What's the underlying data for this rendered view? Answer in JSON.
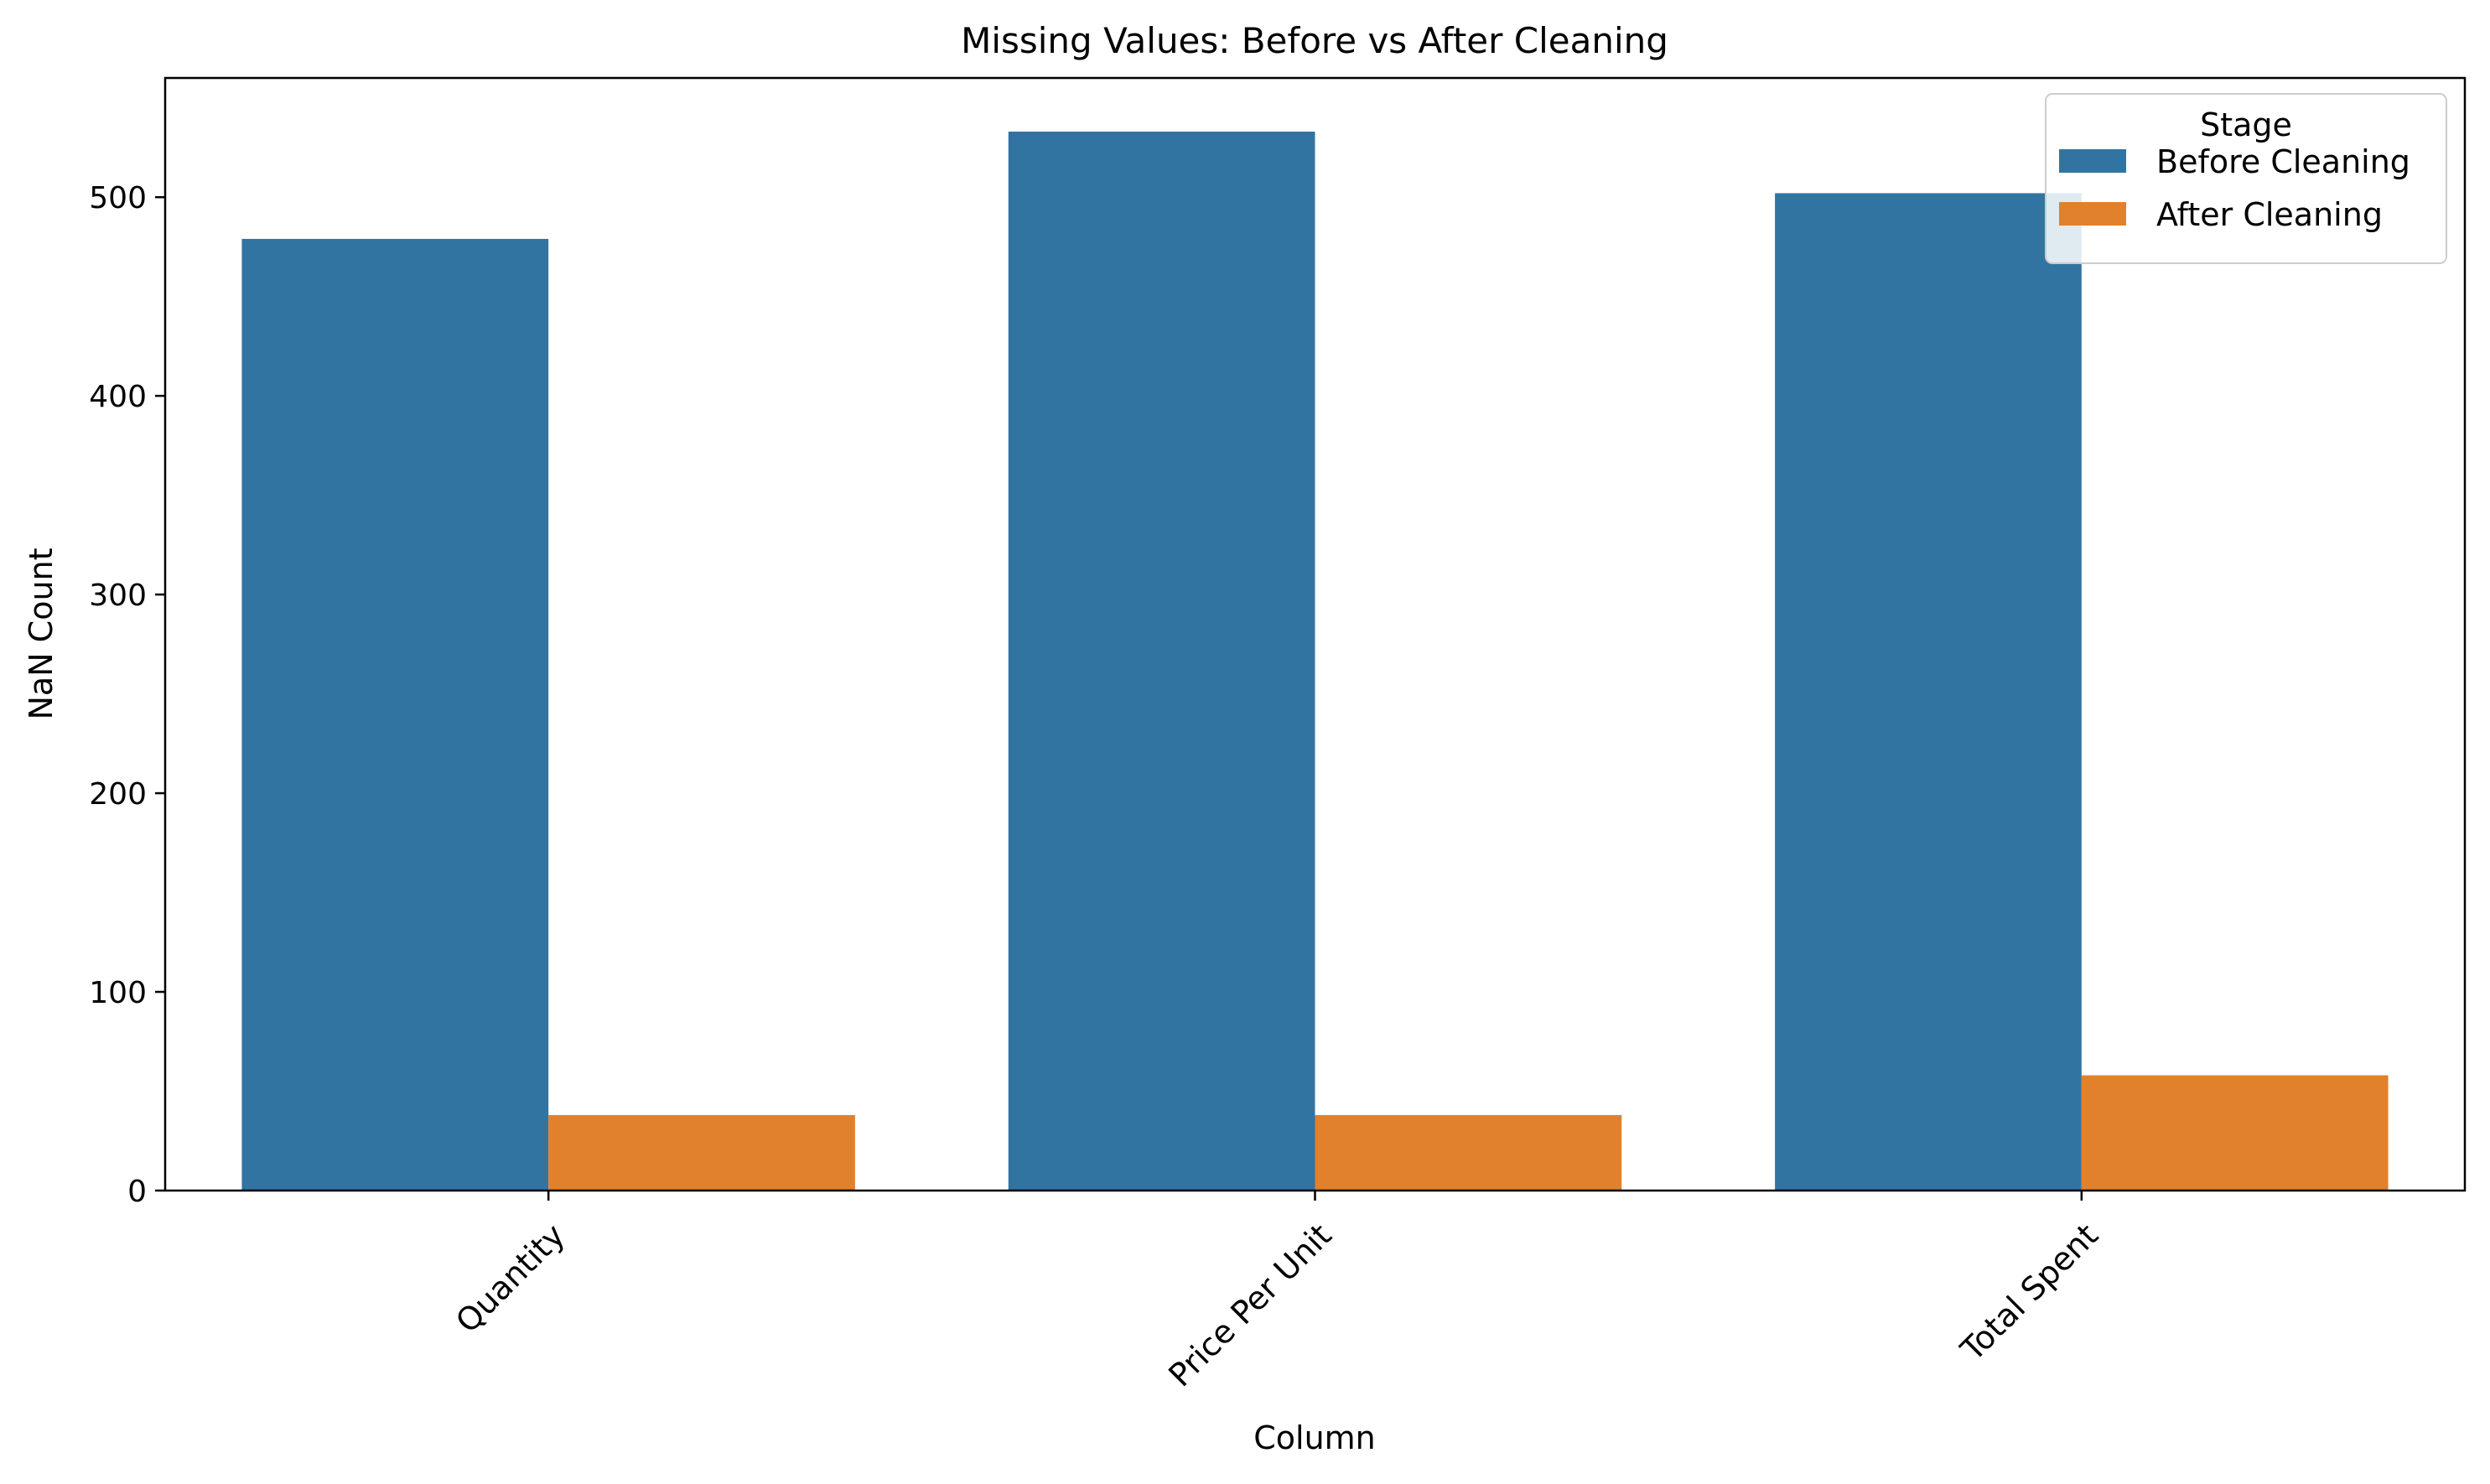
{
  "chart_data": {
    "type": "bar",
    "title": "Missing Values: Before vs After Cleaning",
    "xlabel": "Column",
    "ylabel": "NaN Count",
    "categories": [
      "Quantity",
      "Price Per Unit",
      "Total Spent"
    ],
    "series": [
      {
        "name": "Before Cleaning",
        "color": "#3274a1",
        "values": [
          479,
          533,
          502
        ]
      },
      {
        "name": "After Cleaning",
        "color": "#e1812c",
        "values": [
          38,
          38,
          58
        ]
      }
    ],
    "ylim": [
      0,
      560
    ],
    "yticks": [
      0,
      100,
      200,
      300,
      400,
      500
    ],
    "grid": false,
    "legend": {
      "title": "Stage",
      "position": "top-right"
    },
    "xtick_rotation": 45
  }
}
